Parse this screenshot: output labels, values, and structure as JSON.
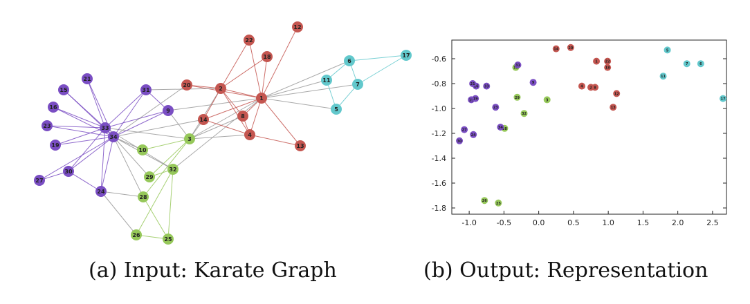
{
  "colors": {
    "red": "#c45650",
    "cyan": "#62c8cc",
    "purple": "#7a4ec3",
    "green": "#96c85a",
    "edge_default": "#999999"
  },
  "captions": {
    "left": "(a) Input: Karate Graph",
    "right": "(b) Output: Representation"
  },
  "graph": {
    "nodes": [
      {
        "id": "1",
        "color": "red"
      },
      {
        "id": "2",
        "color": "red"
      },
      {
        "id": "3",
        "color": "green"
      },
      {
        "id": "4",
        "color": "red"
      },
      {
        "id": "5",
        "color": "cyan"
      },
      {
        "id": "6",
        "color": "cyan"
      },
      {
        "id": "7",
        "color": "cyan"
      },
      {
        "id": "8",
        "color": "red"
      },
      {
        "id": "9",
        "color": "purple"
      },
      {
        "id": "10",
        "color": "green"
      },
      {
        "id": "11",
        "color": "cyan"
      },
      {
        "id": "12",
        "color": "red"
      },
      {
        "id": "13",
        "color": "red"
      },
      {
        "id": "14",
        "color": "red"
      },
      {
        "id": "15",
        "color": "purple"
      },
      {
        "id": "16",
        "color": "purple"
      },
      {
        "id": "17",
        "color": "cyan"
      },
      {
        "id": "18",
        "color": "red"
      },
      {
        "id": "19",
        "color": "purple"
      },
      {
        "id": "20",
        "color": "red"
      },
      {
        "id": "21",
        "color": "purple"
      },
      {
        "id": "22",
        "color": "red"
      },
      {
        "id": "23",
        "color": "purple"
      },
      {
        "id": "24",
        "color": "purple"
      },
      {
        "id": "25",
        "color": "green"
      },
      {
        "id": "26",
        "color": "green"
      },
      {
        "id": "27",
        "color": "purple"
      },
      {
        "id": "28",
        "color": "green"
      },
      {
        "id": "29",
        "color": "green"
      },
      {
        "id": "30",
        "color": "purple"
      },
      {
        "id": "31",
        "color": "purple"
      },
      {
        "id": "32",
        "color": "green"
      },
      {
        "id": "33",
        "color": "purple"
      },
      {
        "id": "34",
        "color": "purple"
      }
    ],
    "edges": [
      [
        "1",
        "2"
      ],
      [
        "1",
        "3"
      ],
      [
        "1",
        "4"
      ],
      [
        "1",
        "5"
      ],
      [
        "1",
        "6"
      ],
      [
        "1",
        "7"
      ],
      [
        "1",
        "8"
      ],
      [
        "1",
        "9"
      ],
      [
        "1",
        "11"
      ],
      [
        "1",
        "12"
      ],
      [
        "1",
        "13"
      ],
      [
        "1",
        "14"
      ],
      [
        "1",
        "18"
      ],
      [
        "1",
        "20"
      ],
      [
        "1",
        "22"
      ],
      [
        "1",
        "32"
      ],
      [
        "2",
        "3"
      ],
      [
        "2",
        "4"
      ],
      [
        "2",
        "8"
      ],
      [
        "2",
        "14"
      ],
      [
        "2",
        "18"
      ],
      [
        "2",
        "20"
      ],
      [
        "2",
        "22"
      ],
      [
        "2",
        "31"
      ],
      [
        "3",
        "4"
      ],
      [
        "3",
        "8"
      ],
      [
        "3",
        "9"
      ],
      [
        "3",
        "10"
      ],
      [
        "3",
        "14"
      ],
      [
        "3",
        "28"
      ],
      [
        "3",
        "29"
      ],
      [
        "3",
        "33"
      ],
      [
        "4",
        "8"
      ],
      [
        "4",
        "13"
      ],
      [
        "4",
        "14"
      ],
      [
        "5",
        "7"
      ],
      [
        "5",
        "11"
      ],
      [
        "6",
        "7"
      ],
      [
        "6",
        "11"
      ],
      [
        "6",
        "17"
      ],
      [
        "7",
        "17"
      ],
      [
        "9",
        "31"
      ],
      [
        "9",
        "33"
      ],
      [
        "9",
        "34"
      ],
      [
        "10",
        "34"
      ],
      [
        "14",
        "34"
      ],
      [
        "15",
        "33"
      ],
      [
        "15",
        "34"
      ],
      [
        "16",
        "33"
      ],
      [
        "16",
        "34"
      ],
      [
        "19",
        "33"
      ],
      [
        "19",
        "34"
      ],
      [
        "20",
        "34"
      ],
      [
        "21",
        "33"
      ],
      [
        "21",
        "34"
      ],
      [
        "23",
        "33"
      ],
      [
        "23",
        "34"
      ],
      [
        "24",
        "26"
      ],
      [
        "24",
        "28"
      ],
      [
        "24",
        "30"
      ],
      [
        "24",
        "33"
      ],
      [
        "24",
        "34"
      ],
      [
        "25",
        "26"
      ],
      [
        "25",
        "28"
      ],
      [
        "25",
        "32"
      ],
      [
        "26",
        "32"
      ],
      [
        "27",
        "30"
      ],
      [
        "27",
        "34"
      ],
      [
        "28",
        "34"
      ],
      [
        "29",
        "32"
      ],
      [
        "29",
        "34"
      ],
      [
        "30",
        "33"
      ],
      [
        "30",
        "34"
      ],
      [
        "31",
        "33"
      ],
      [
        "31",
        "34"
      ],
      [
        "32",
        "33"
      ],
      [
        "32",
        "34"
      ],
      [
        "33",
        "34"
      ]
    ]
  },
  "chart_data": {
    "type": "scatter",
    "title": "",
    "xlabel": "",
    "ylabel": "",
    "xlim": [
      -1.25,
      2.7
    ],
    "ylim": [
      -1.85,
      -0.45
    ],
    "xticks": [
      "-1.0",
      "-0.5",
      "0.0",
      "0.5",
      "1.0",
      "1.5",
      "2.0",
      "2.5"
    ],
    "xtick_values": [
      -1.0,
      -0.5,
      0.0,
      0.5,
      1.0,
      1.5,
      2.0,
      2.5
    ],
    "yticks": [
      "-0.6",
      "-0.8",
      "-1.0",
      "-1.2",
      "-1.4",
      "-1.6",
      "-1.8"
    ],
    "ytick_values": [
      -0.6,
      -0.8,
      -1.0,
      -1.2,
      -1.4,
      -1.6,
      -1.8
    ],
    "grid": false,
    "points": [
      {
        "label": "1",
        "x": 0.83,
        "y": -0.62,
        "color": "red"
      },
      {
        "label": "2",
        "x": 0.75,
        "y": -0.83,
        "color": "red"
      },
      {
        "label": "3",
        "x": 0.12,
        "y": -0.93,
        "color": "green"
      },
      {
        "label": "4",
        "x": 0.62,
        "y": -0.82,
        "color": "red"
      },
      {
        "label": "5",
        "x": 1.85,
        "y": -0.53,
        "color": "cyan"
      },
      {
        "label": "6",
        "x": 2.33,
        "y": -0.64,
        "color": "cyan"
      },
      {
        "label": "7",
        "x": 2.13,
        "y": -0.64,
        "color": "cyan"
      },
      {
        "label": "8",
        "x": 0.81,
        "y": -0.83,
        "color": "red"
      },
      {
        "label": "9",
        "x": -0.08,
        "y": -0.79,
        "color": "purple"
      },
      {
        "label": "10",
        "x": -0.33,
        "y": -0.67,
        "color": "green"
      },
      {
        "label": "11",
        "x": 1.79,
        "y": -0.74,
        "color": "cyan"
      },
      {
        "label": "12",
        "x": 1.12,
        "y": -0.88,
        "color": "red"
      },
      {
        "label": "13",
        "x": 1.07,
        "y": -0.99,
        "color": "red"
      },
      {
        "label": "14",
        "x": 0.25,
        "y": -0.52,
        "color": "red"
      },
      {
        "label": "15",
        "x": -0.97,
        "y": -0.93,
        "color": "purple"
      },
      {
        "label": "16",
        "x": -0.9,
        "y": -0.82,
        "color": "purple"
      },
      {
        "label": "17",
        "x": 2.65,
        "y": -0.92,
        "color": "cyan"
      },
      {
        "label": "18",
        "x": 0.99,
        "y": -0.67,
        "color": "red"
      },
      {
        "label": "19",
        "x": -0.91,
        "y": -0.92,
        "color": "purple"
      },
      {
        "label": "20",
        "x": 0.46,
        "y": -0.51,
        "color": "red"
      },
      {
        "label": "21",
        "x": -0.95,
        "y": -0.8,
        "color": "purple"
      },
      {
        "label": "22",
        "x": 0.99,
        "y": -0.62,
        "color": "red"
      },
      {
        "label": "23",
        "x": -0.62,
        "y": -0.99,
        "color": "purple"
      },
      {
        "label": "24",
        "x": -0.94,
        "y": -1.21,
        "color": "purple"
      },
      {
        "label": "25",
        "x": -0.58,
        "y": -1.76,
        "color": "green"
      },
      {
        "label": "26",
        "x": -0.78,
        "y": -1.74,
        "color": "green"
      },
      {
        "label": "27",
        "x": -1.07,
        "y": -1.17,
        "color": "purple"
      },
      {
        "label": "28",
        "x": -0.49,
        "y": -1.16,
        "color": "green"
      },
      {
        "label": "29",
        "x": -0.31,
        "y": -0.91,
        "color": "green"
      },
      {
        "label": "30",
        "x": -1.14,
        "y": -1.26,
        "color": "purple"
      },
      {
        "label": "31",
        "x": -0.3,
        "y": -0.65,
        "color": "purple"
      },
      {
        "label": "32",
        "x": -0.21,
        "y": -1.04,
        "color": "green"
      },
      {
        "label": "33",
        "x": -0.75,
        "y": -0.82,
        "color": "purple"
      },
      {
        "label": "34",
        "x": -0.55,
        "y": -1.15,
        "color": "purple"
      }
    ]
  }
}
